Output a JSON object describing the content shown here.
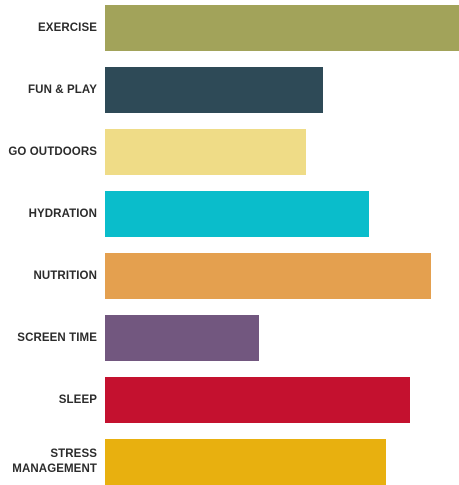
{
  "chart_data": {
    "type": "bar",
    "orientation": "horizontal",
    "categories": [
      "EXERCISE",
      "FUN & PLAY",
      "GO OUTDOORS",
      "HYDRATION",
      "NUTRITION",
      "SCREEN TIME",
      "SLEEP",
      "STRESS\nMANAGEMENT"
    ],
    "values": [
      100,
      61.6,
      56.8,
      74.6,
      92.1,
      43.5,
      86.2,
      79.4
    ],
    "colors": [
      "#A2A35A",
      "#2E4A57",
      "#EFDC87",
      "#0ABDCB",
      "#E4A04F",
      "#72577F",
      "#C4112F",
      "#E8B00F"
    ],
    "xlim": [
      0,
      100
    ],
    "grid": false,
    "legend": false,
    "title": "",
    "xlabel": "",
    "ylabel": ""
  }
}
